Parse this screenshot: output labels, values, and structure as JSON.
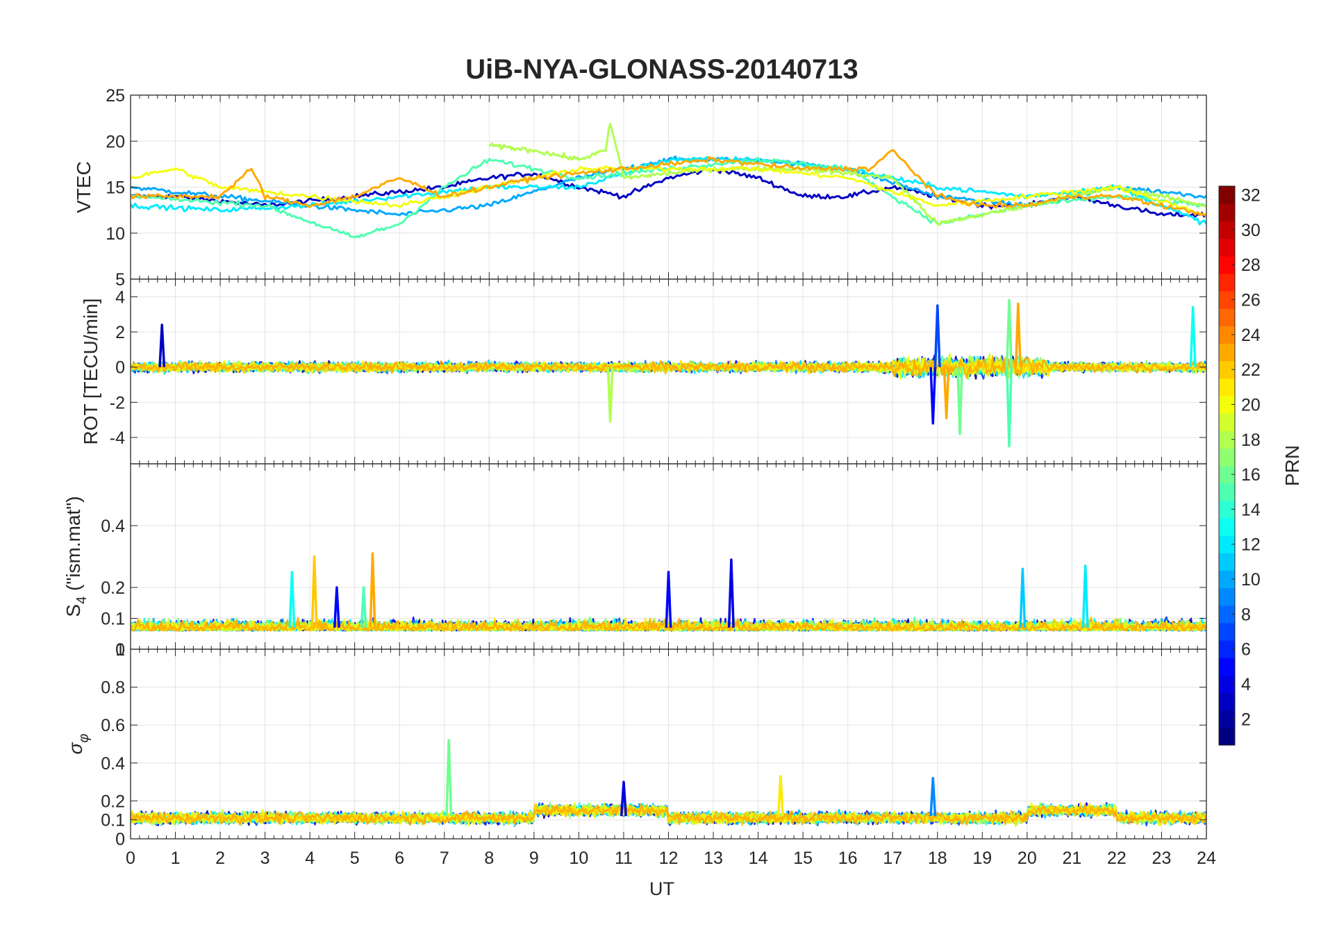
{
  "figure": {
    "title": "UiB-NYA-GLONASS-20140713",
    "xlabel": "UT",
    "x_range": [
      0,
      24
    ],
    "x_ticks": [
      "0",
      "1",
      "2",
      "3",
      "4",
      "5",
      "6",
      "7",
      "8",
      "9",
      "10",
      "11",
      "12",
      "13",
      "14",
      "15",
      "16",
      "17",
      "18",
      "19",
      "20",
      "21",
      "22",
      "23",
      "24"
    ]
  },
  "colorbar": {
    "label": "PRN",
    "range": [
      1,
      32
    ],
    "ticks": [
      "2",
      "4",
      "6",
      "8",
      "10",
      "12",
      "14",
      "16",
      "18",
      "20",
      "22",
      "24",
      "26",
      "28",
      "30",
      "32"
    ],
    "colormap": "jet"
  },
  "chart_data": [
    {
      "type": "line",
      "id": "vtec",
      "ylabel": "VTEC",
      "ylim": [
        5,
        25
      ],
      "y_ticks": [
        "5",
        "10",
        "15",
        "20",
        "25"
      ],
      "grid": true,
      "series_note_values": "multi-satellite time series, colored by PRN",
      "series": [
        {
          "prn": 3,
          "x": [
            0,
            1,
            2,
            3,
            4,
            5,
            6,
            7,
            8,
            9,
            10,
            11,
            12,
            13,
            14,
            15,
            16,
            17,
            18,
            19,
            20,
            21,
            22,
            23,
            24
          ],
          "values": [
            14,
            14,
            13.5,
            13,
            13.5,
            14,
            14.5,
            15,
            16,
            16.5,
            15,
            14,
            16,
            17,
            16,
            14,
            14,
            15,
            14,
            13,
            13,
            14,
            13,
            12,
            12
          ]
        },
        {
          "prn": 10,
          "x": [
            0,
            2,
            4,
            6,
            8,
            10,
            12,
            14,
            16,
            18,
            20,
            22,
            24
          ],
          "values": [
            15,
            14,
            13,
            12,
            13,
            16,
            18,
            18,
            17,
            14,
            13,
            15,
            14
          ]
        },
        {
          "prn": 12,
          "x": [
            0,
            2,
            4,
            6,
            8,
            10,
            12,
            14,
            16,
            18,
            20,
            22,
            24
          ],
          "values": [
            13,
            12.5,
            13,
            14,
            15,
            15,
            18,
            18,
            17,
            15,
            14,
            15,
            11
          ]
        },
        {
          "prn": 15,
          "x": [
            0,
            3,
            5,
            6,
            7,
            8,
            9,
            10,
            12,
            14,
            16,
            18,
            20,
            22,
            24
          ],
          "values": [
            14,
            13,
            9.5,
            11,
            15,
            18,
            17,
            16,
            17,
            18,
            17,
            11,
            13,
            14,
            13
          ]
        },
        {
          "prn": 18,
          "x": [
            8,
            9,
            10,
            10.6,
            10.7,
            11,
            13,
            15,
            17,
            18,
            20,
            22,
            24
          ],
          "values": [
            19.5,
            19,
            18,
            19,
            22,
            16,
            17,
            17,
            16,
            11,
            13,
            15,
            13
          ]
        },
        {
          "prn": 20,
          "x": [
            0,
            1,
            2,
            4,
            6,
            8,
            10,
            12,
            14,
            16,
            18,
            20,
            22,
            24
          ],
          "values": [
            16,
            17,
            15,
            14,
            13,
            15,
            17,
            17,
            17,
            16,
            13,
            14,
            15,
            12
          ]
        },
        {
          "prn": 23,
          "x": [
            0,
            2,
            2.7,
            3,
            4,
            5,
            6,
            7,
            9,
            11,
            13,
            15,
            16.5,
            17,
            18,
            19,
            20,
            21,
            22,
            23,
            24
          ],
          "values": [
            14,
            14,
            17,
            14,
            13,
            14,
            16,
            14,
            16,
            17,
            18,
            17,
            17,
            19,
            14,
            13,
            13,
            14,
            14,
            13,
            12
          ]
        }
      ]
    },
    {
      "type": "line",
      "id": "rot",
      "ylabel": "ROT [TECU/min]",
      "ylim": [
        -5.5,
        5
      ],
      "y_ticks": [
        "-4",
        "-2",
        "0",
        "2",
        "4"
      ],
      "grid": true,
      "peaks": [
        {
          "x": 0.7,
          "y": 2.4,
          "prn": 3
        },
        {
          "x": 10.7,
          "y": -3.1,
          "prn": 18
        },
        {
          "x": 17.9,
          "y": -3.2,
          "prn": 5
        },
        {
          "x": 18.0,
          "y": 3.5,
          "prn": 7
        },
        {
          "x": 18.2,
          "y": -2.9,
          "prn": 23
        },
        {
          "x": 18.5,
          "y": -3.8,
          "prn": 16
        },
        {
          "x": 19.6,
          "y": 3.8,
          "prn": 16
        },
        {
          "x": 19.6,
          "y": -4.5,
          "prn": 15
        },
        {
          "x": 19.8,
          "y": 3.6,
          "prn": 23
        },
        {
          "x": 23.7,
          "y": 3.4,
          "prn": 13
        }
      ]
    },
    {
      "type": "line",
      "id": "s4",
      "ylabel": "S4 (\"ism.mat\")",
      "ylabel_main": "S",
      "ylabel_sub": "4",
      "ylabel_rest": " (\"ism.mat\")",
      "ylim": [
        0,
        0.6
      ],
      "y_ticks": [
        "0",
        "0.1",
        "0.2",
        "0.4"
      ],
      "grid": true,
      "peaks": [
        {
          "x": 3.6,
          "y": 0.25,
          "prn": 13
        },
        {
          "x": 4.1,
          "y": 0.3,
          "prn": 22
        },
        {
          "x": 4.6,
          "y": 0.2,
          "prn": 5
        },
        {
          "x": 5.2,
          "y": 0.2,
          "prn": 15
        },
        {
          "x": 5.4,
          "y": 0.31,
          "prn": 23
        },
        {
          "x": 12.0,
          "y": 0.25,
          "prn": 5
        },
        {
          "x": 13.4,
          "y": 0.29,
          "prn": 4
        },
        {
          "x": 19.9,
          "y": 0.26,
          "prn": 11
        },
        {
          "x": 21.3,
          "y": 0.27,
          "prn": 12
        }
      ]
    },
    {
      "type": "line",
      "id": "sigma_phi",
      "ylabel": "σ φ",
      "ylabel_main": "σ",
      "ylabel_sub": "φ",
      "ylim": [
        0,
        1
      ],
      "y_ticks": [
        "0",
        "0.1",
        "0.2",
        "0.4",
        "0.6",
        "0.8",
        "1"
      ],
      "grid": true,
      "peaks": [
        {
          "x": 7.1,
          "y": 0.52,
          "prn": 16
        },
        {
          "x": 14.5,
          "y": 0.33,
          "prn": 21
        },
        {
          "x": 17.9,
          "y": 0.32,
          "prn": 9
        },
        {
          "x": 11.0,
          "y": 0.3,
          "prn": 4
        }
      ]
    }
  ]
}
